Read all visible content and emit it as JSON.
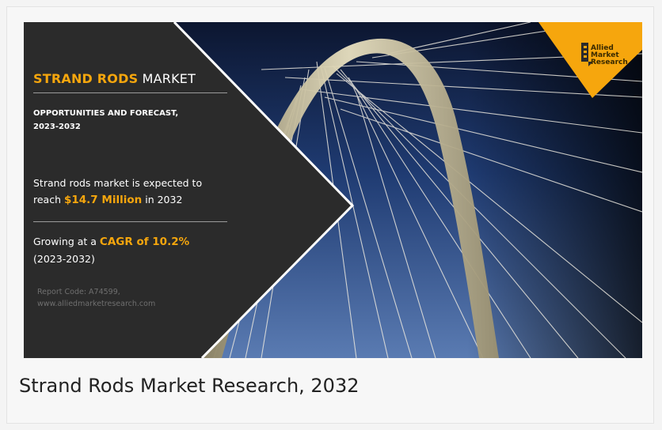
{
  "banner": {
    "title_accent": "STRAND RODS",
    "title_rest": "MARKET",
    "subtitle_line1": "OPPORTUNITIES AND FORECAST,",
    "subtitle_line2": "2023-2032",
    "stat1_pre": "Strand rods market is expected to",
    "stat1_reach": "reach",
    "stat1_value": "$14.7 Million",
    "stat1_post": "in 2032",
    "stat2_pre": "Growing at a",
    "stat2_value": "CAGR of 10.2%",
    "stat2_period": "(2023-2032)",
    "report_code": "Report Code: A74599,",
    "website": "www.alliedmarketresearch.com",
    "logo_line1": "Allied",
    "logo_line2": "Market",
    "logo_line3": "Research"
  },
  "caption": "Strand Rods Market Research, 2032",
  "colors": {
    "accent": "#f6a60d",
    "panel": "#2b2b2b",
    "sky_top": "#0d1a36",
    "sky_bottom": "#4e6fa6"
  }
}
